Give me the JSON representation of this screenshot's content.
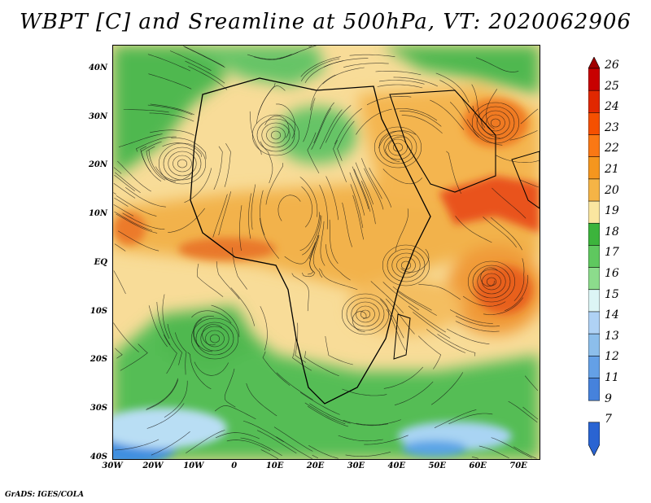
{
  "title": "WBPT [C] and Sreamline at 500hPa, VT: 2020062906",
  "footer": "GrADS: IGES/COLA",
  "map": {
    "projection": "lat-lon",
    "variables": [
      "wet-bulb potential temperature (shaded)",
      "500hPa streamlines"
    ],
    "lon_range": [
      -30,
      75
    ],
    "lat_range": [
      -40,
      45
    ]
  },
  "lat_ticks": [
    {
      "label": "40N",
      "value": 40
    },
    {
      "label": "30N",
      "value": 30
    },
    {
      "label": "20N",
      "value": 20
    },
    {
      "label": "10N",
      "value": 10
    },
    {
      "label": "EQ",
      "value": 0
    },
    {
      "label": "10S",
      "value": -10
    },
    {
      "label": "20S",
      "value": -20
    },
    {
      "label": "30S",
      "value": -30
    },
    {
      "label": "40S",
      "value": -40
    }
  ],
  "lon_ticks": [
    {
      "label": "30W",
      "value": -30
    },
    {
      "label": "20W",
      "value": -20
    },
    {
      "label": "10W",
      "value": -10
    },
    {
      "label": "0",
      "value": 0
    },
    {
      "label": "10E",
      "value": 10
    },
    {
      "label": "20E",
      "value": 20
    },
    {
      "label": "30E",
      "value": 30
    },
    {
      "label": "40E",
      "value": 40
    },
    {
      "label": "50E",
      "value": 50
    },
    {
      "label": "60E",
      "value": 60
    },
    {
      "label": "70E",
      "value": 70
    }
  ],
  "colorbar": {
    "labels": [
      "26",
      "25",
      "24",
      "23",
      "22",
      "21",
      "20",
      "19",
      "18",
      "17",
      "16",
      "15",
      "14",
      "13",
      "12",
      "11",
      "9",
      "7"
    ],
    "colors": [
      "#a00000",
      "#c80000",
      "#e12800",
      "#f55000",
      "#fa7814",
      "#f5961e",
      "#f5b446",
      "#fae6a0",
      "#3cb43c",
      "#5fc85f",
      "#8cdc8c",
      "#dcf5f5",
      "#afd2f5",
      "#8cbeeb",
      "#64a0e6",
      "#4682dc",
      "#2a64d2"
    ]
  }
}
